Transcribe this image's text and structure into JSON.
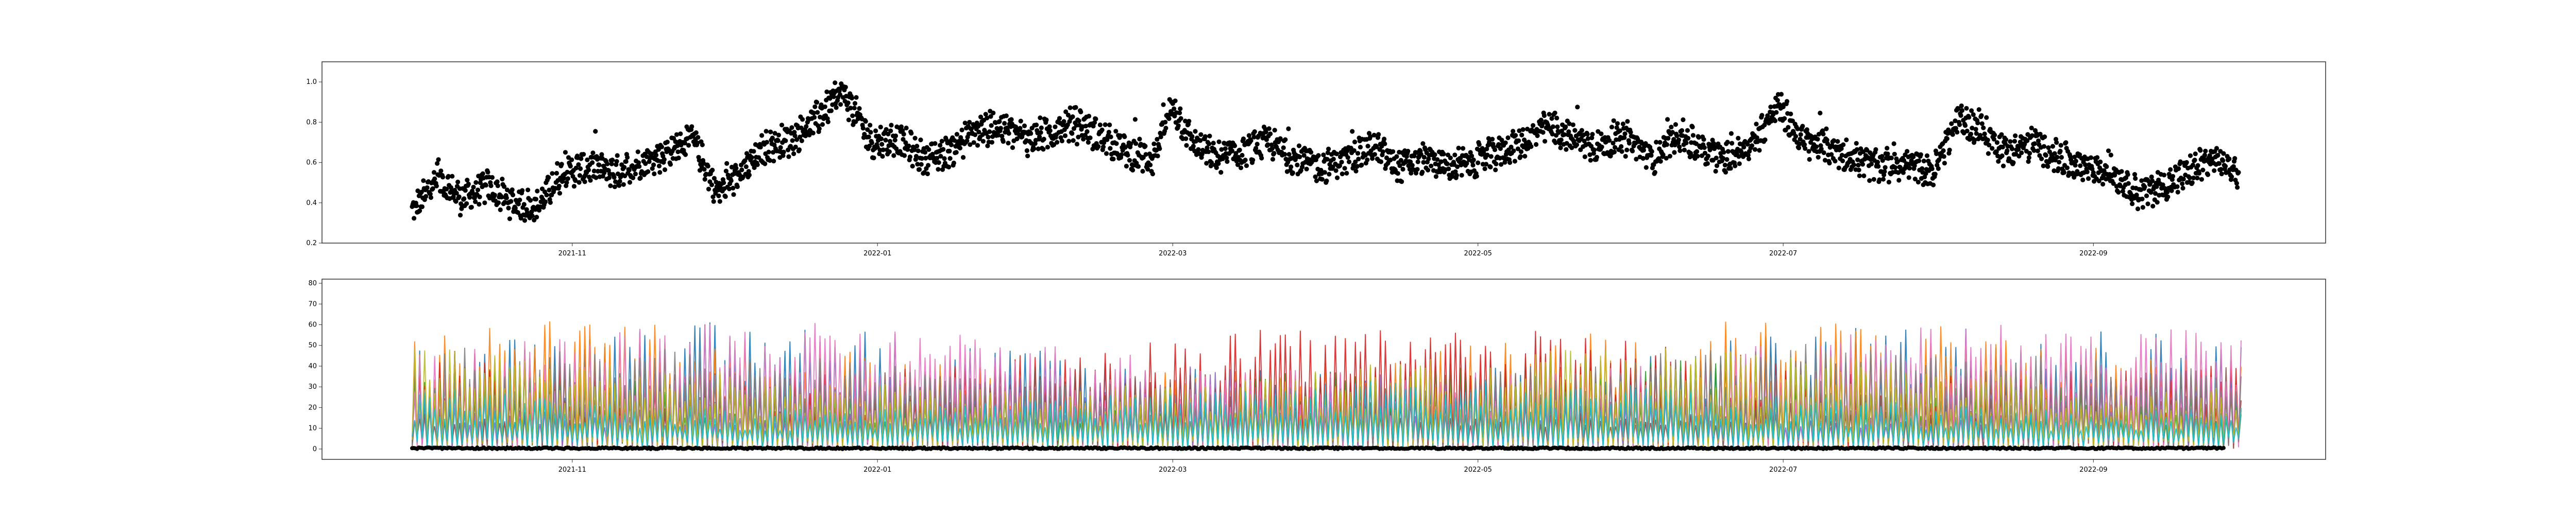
{
  "chart_data": [
    {
      "type": "scatter",
      "title": "",
      "xlabel": "",
      "ylabel": "",
      "x_range": [
        "2021-09-30",
        "2022-09-30"
      ],
      "ylim": [
        0.2,
        1.1
      ],
      "grid": false,
      "series": [
        {
          "color": "#000000",
          "points": [
            [
              "2021-09-30",
              0.35
            ],
            [
              "2021-10-05",
              0.52
            ],
            [
              "2021-10-10",
              0.42
            ],
            [
              "2021-10-15",
              0.48
            ],
            [
              "2021-10-20",
              0.4
            ],
            [
              "2021-10-25",
              0.38
            ],
            [
              "2021-10-30",
              0.55
            ],
            [
              "2021-11-05",
              0.58
            ],
            [
              "2021-11-10",
              0.55
            ],
            [
              "2021-11-15",
              0.6
            ],
            [
              "2021-11-20",
              0.65
            ],
            [
              "2021-11-25",
              0.72
            ],
            [
              "2021-11-30",
              0.45
            ],
            [
              "2021-12-05",
              0.55
            ],
            [
              "2021-12-10",
              0.68
            ],
            [
              "2021-12-15",
              0.72
            ],
            [
              "2021-12-20",
              0.82
            ],
            [
              "2021-12-25",
              0.95
            ],
            [
              "2021-12-31",
              0.7
            ],
            [
              "2022-01-05",
              0.72
            ],
            [
              "2022-01-10",
              0.62
            ],
            [
              "2022-01-15",
              0.65
            ],
            [
              "2022-01-20",
              0.75
            ],
            [
              "2022-01-25",
              0.78
            ],
            [
              "2022-01-31",
              0.72
            ],
            [
              "2022-02-05",
              0.75
            ],
            [
              "2022-02-10",
              0.8
            ],
            [
              "2022-02-15",
              0.72
            ],
            [
              "2022-02-20",
              0.65
            ],
            [
              "2022-02-25",
              0.62
            ],
            [
              "2022-03-01",
              0.88
            ],
            [
              "2022-03-05",
              0.7
            ],
            [
              "2022-03-10",
              0.62
            ],
            [
              "2022-03-15",
              0.65
            ],
            [
              "2022-03-20",
              0.7
            ],
            [
              "2022-03-25",
              0.62
            ],
            [
              "2022-03-31",
              0.58
            ],
            [
              "2022-04-05",
              0.62
            ],
            [
              "2022-04-10",
              0.68
            ],
            [
              "2022-04-15",
              0.58
            ],
            [
              "2022-04-20",
              0.62
            ],
            [
              "2022-04-25",
              0.58
            ],
            [
              "2022-04-30",
              0.6
            ],
            [
              "2022-05-05",
              0.65
            ],
            [
              "2022-05-10",
              0.7
            ],
            [
              "2022-05-15",
              0.78
            ],
            [
              "2022-05-20",
              0.72
            ],
            [
              "2022-05-25",
              0.68
            ],
            [
              "2022-05-31",
              0.72
            ],
            [
              "2022-06-05",
              0.62
            ],
            [
              "2022-06-10",
              0.75
            ],
            [
              "2022-06-15",
              0.65
            ],
            [
              "2022-06-20",
              0.62
            ],
            [
              "2022-06-25",
              0.7
            ],
            [
              "2022-06-30",
              0.88
            ],
            [
              "2022-07-05",
              0.7
            ],
            [
              "2022-07-10",
              0.68
            ],
            [
              "2022-07-15",
              0.62
            ],
            [
              "2022-07-20",
              0.58
            ],
            [
              "2022-07-25",
              0.6
            ],
            [
              "2022-07-31",
              0.55
            ],
            [
              "2022-08-05",
              0.82
            ],
            [
              "2022-08-10",
              0.75
            ],
            [
              "2022-08-15",
              0.65
            ],
            [
              "2022-08-20",
              0.7
            ],
            [
              "2022-08-25",
              0.62
            ],
            [
              "2022-08-31",
              0.58
            ],
            [
              "2022-09-05",
              0.55
            ],
            [
              "2022-09-10",
              0.45
            ],
            [
              "2022-09-15",
              0.48
            ],
            [
              "2022-09-20",
              0.55
            ],
            [
              "2022-09-25",
              0.62
            ],
            [
              "2022-09-30",
              0.55
            ]
          ]
        }
      ],
      "x_tick_labels": [
        "2021-11",
        "2022-01",
        "2022-03",
        "2022-05",
        "2022-07",
        "2022-09"
      ],
      "y_tick_labels": [
        "0.2",
        "0.4",
        "0.6",
        "0.8",
        "1.0"
      ]
    },
    {
      "type": "line",
      "title": "",
      "xlabel": "",
      "ylabel": "",
      "x_range": [
        "2021-09-30",
        "2022-09-30"
      ],
      "ylim": [
        -5,
        82
      ],
      "grid": false,
      "series_colors": [
        "#1f77b4",
        "#ff7f0e",
        "#2ca02c",
        "#d62728",
        "#9467bd",
        "#8c564b",
        "#e377c2",
        "#7f7f7f",
        "#bcbd22",
        "#17becf"
      ],
      "series_description": "dense multi-series daily-cycle lines ranging roughly 0–60 with occasional peaks up to ~80",
      "baseline_marker_value": 0,
      "x_tick_labels": [
        "2021-11",
        "2022-01",
        "2022-03",
        "2022-05",
        "2022-07",
        "2022-09"
      ],
      "y_tick_labels": [
        "0",
        "10",
        "20",
        "30",
        "40",
        "50",
        "60",
        "70",
        "80"
      ]
    }
  ]
}
